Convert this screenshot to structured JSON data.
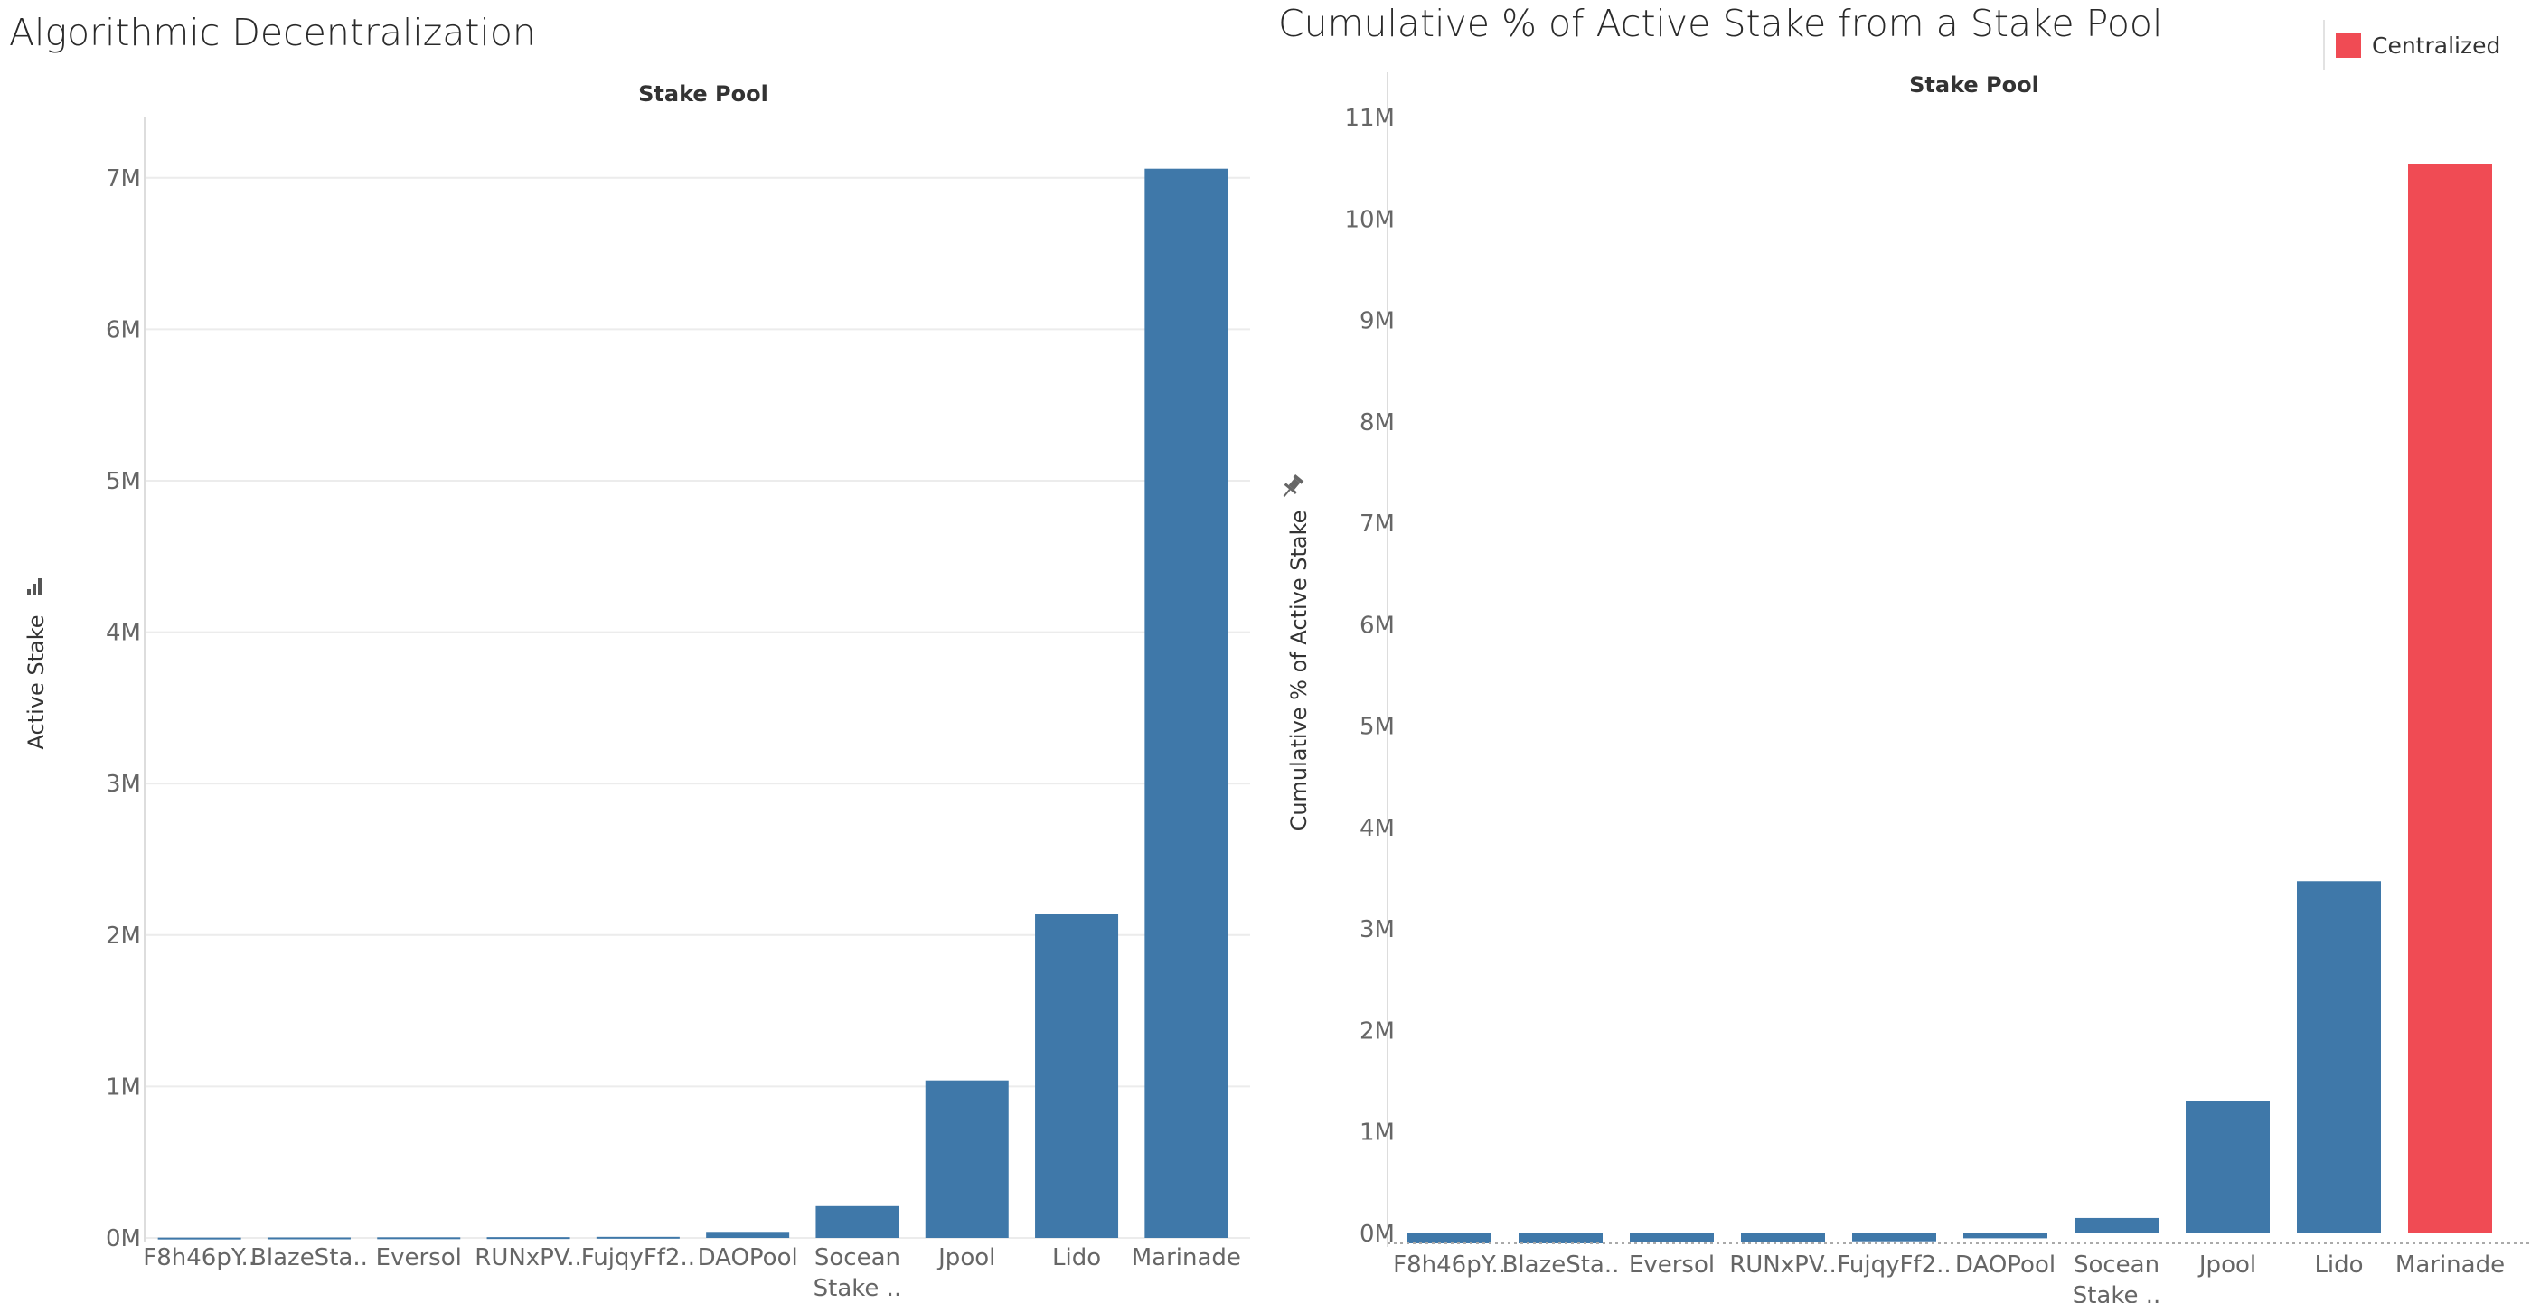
{
  "colors": {
    "bar": "#3f78a9",
    "centralized": "#f04b54",
    "grid": "#ececec",
    "axis_text": "#666666"
  },
  "chart_data": [
    {
      "type": "bar",
      "title": "Algorithmic Decentralization",
      "xlabel": "Stake Pool",
      "ylabel": "Active Stake",
      "ylim": [
        0,
        7100000
      ],
      "yticks": [
        0,
        1000000,
        2000000,
        3000000,
        4000000,
        5000000,
        6000000,
        7000000
      ],
      "ytick_labels": [
        "0M",
        "1M",
        "2M",
        "3M",
        "4M",
        "5M",
        "6M",
        "7M"
      ],
      "grid": true,
      "categories": [
        "F8h46pY..",
        "BlazeSta..",
        "Eversol",
        "RUNxPV..",
        "FujqyFf2..",
        "DAOPool",
        "Socean Stake ..",
        "Jpool",
        "Lido",
        "Marinade"
      ],
      "values": [
        2000,
        3000,
        4000,
        5000,
        7000,
        40000,
        210000,
        1040000,
        2140000,
        7060000
      ],
      "colors": [
        "#3f78a9",
        "#3f78a9",
        "#3f78a9",
        "#3f78a9",
        "#3f78a9",
        "#3f78a9",
        "#3f78a9",
        "#3f78a9",
        "#3f78a9",
        "#3f78a9"
      ]
    },
    {
      "type": "bar",
      "title": "Cumulative % of Active Stake from a Stake Pool",
      "xlabel": "Stake Pool",
      "ylabel": "Cumulative % of Active Stake",
      "ylim": [
        -100000,
        11000000
      ],
      "yticks": [
        0,
        1000000,
        2000000,
        3000000,
        4000000,
        5000000,
        6000000,
        7000000,
        8000000,
        9000000,
        10000000,
        11000000
      ],
      "ytick_labels": [
        "0M",
        "1M",
        "2M",
        "3M",
        "4M",
        "5M",
        "6M",
        "7M",
        "8M",
        "9M",
        "10M",
        "11M"
      ],
      "grid": false,
      "legend": {
        "placement": "top-right",
        "entries": [
          {
            "label": "Centralized",
            "color": "#f04b54"
          }
        ]
      },
      "categories": [
        "F8h46pY..",
        "BlazeSta..",
        "Eversol",
        "RUNxPV..",
        "FujqyFf2..",
        "DAOPool",
        "Socean Stake ..",
        "Jpool",
        "Lido",
        "Marinade"
      ],
      "values": [
        -100000,
        -100000,
        -90000,
        -90000,
        -80000,
        -50000,
        150000,
        1300000,
        3470000,
        10540000
      ],
      "colors": [
        "#3f78a9",
        "#3f78a9",
        "#3f78a9",
        "#3f78a9",
        "#3f78a9",
        "#3f78a9",
        "#3f78a9",
        "#3f78a9",
        "#3f78a9",
        "#f04b54"
      ]
    }
  ]
}
